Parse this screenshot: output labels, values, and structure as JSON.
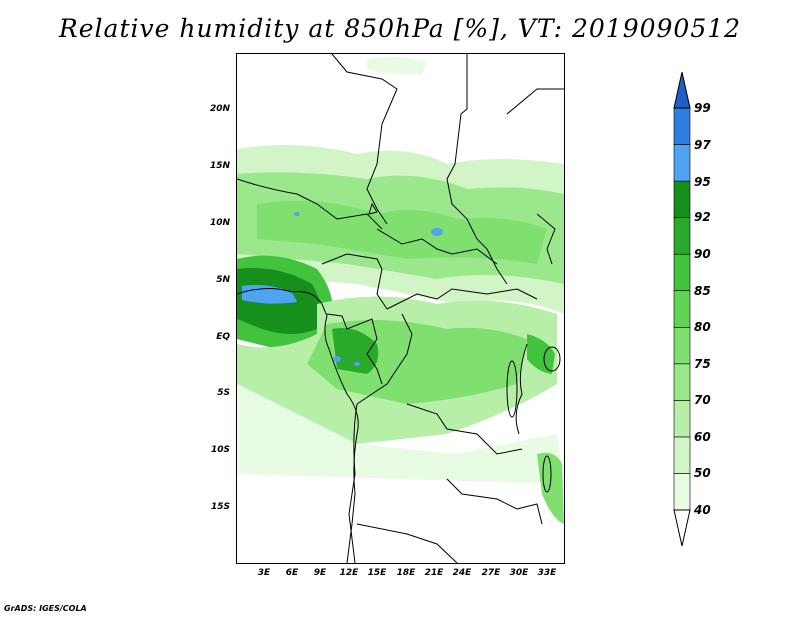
{
  "title": "Relative humidity at 850hPa [%], VT: 2019090512",
  "footer": "GrADS: IGES/COLA",
  "lat_ticks": [
    "20N",
    "15N",
    "10N",
    "5N",
    "EQ",
    "5S",
    "10S",
    "15S"
  ],
  "lon_ticks": [
    "3E",
    "6E",
    "9E",
    "12E",
    "15E",
    "18E",
    "21E",
    "24E",
    "27E",
    "30E",
    "33E"
  ],
  "colorbar": {
    "labels": [
      "99",
      "97",
      "95",
      "92",
      "90",
      "85",
      "80",
      "75",
      "70",
      "60",
      "50",
      "40"
    ],
    "bins": [
      {
        "range": "40-50",
        "color": "#e8fbe3"
      },
      {
        "range": "50-60",
        "color": "#d2f5c8"
      },
      {
        "range": "60-70",
        "color": "#b7efa8"
      },
      {
        "range": "70-75",
        "color": "#9be88c"
      },
      {
        "range": "75-80",
        "color": "#7fe070"
      },
      {
        "range": "80-85",
        "color": "#5fd354"
      },
      {
        "range": "85-90",
        "color": "#42c33e"
      },
      {
        "range": "90-92",
        "color": "#2aaa2b"
      },
      {
        "range": "92-95",
        "color": "#178f1c"
      },
      {
        "range": "95-97",
        "color": "#4fa3f0"
      },
      {
        "range": "97-99",
        "color": "#2f7fe0"
      },
      {
        "range": ">99",
        "color": "#1e5fc8"
      }
    ]
  },
  "colors": {
    "light_green": "#d2f5c8",
    "mid_green": "#7fe070",
    "dark_green": "#2aaa2b",
    "deep_green": "#178f1c",
    "blue": "#4fa3f0"
  }
}
